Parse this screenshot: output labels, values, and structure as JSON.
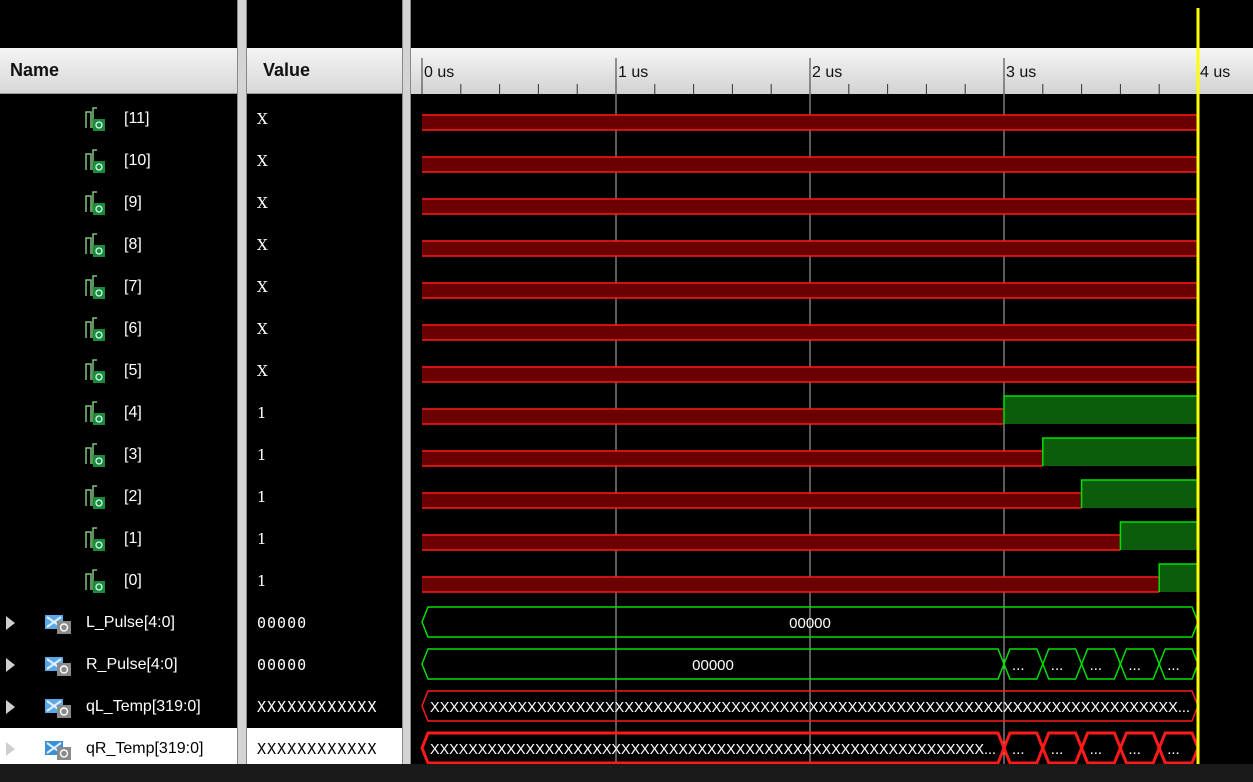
{
  "columns": {
    "name": "Name",
    "value": "Value"
  },
  "timeline": {
    "ticks": [
      {
        "t": 0,
        "label": "0 us"
      },
      {
        "t": 1,
        "label": "1 us"
      },
      {
        "t": 2,
        "label": "2 us"
      },
      {
        "t": 3,
        "label": "3 us"
      },
      {
        "t": 4,
        "label": "4 us"
      }
    ],
    "cursor_time": 4,
    "sim_end_time": 4
  },
  "signals": [
    {
      "name": "[11]",
      "kind": "bit",
      "value": "X",
      "segments": [
        {
          "from": 0,
          "to": 4,
          "state": "X"
        }
      ]
    },
    {
      "name": "[10]",
      "kind": "bit",
      "value": "X",
      "segments": [
        {
          "from": 0,
          "to": 4,
          "state": "X"
        }
      ]
    },
    {
      "name": "[9]",
      "kind": "bit",
      "value": "X",
      "segments": [
        {
          "from": 0,
          "to": 4,
          "state": "X"
        }
      ]
    },
    {
      "name": "[8]",
      "kind": "bit",
      "value": "X",
      "segments": [
        {
          "from": 0,
          "to": 4,
          "state": "X"
        }
      ]
    },
    {
      "name": "[7]",
      "kind": "bit",
      "value": "X",
      "segments": [
        {
          "from": 0,
          "to": 4,
          "state": "X"
        }
      ]
    },
    {
      "name": "[6]",
      "kind": "bit",
      "value": "X",
      "segments": [
        {
          "from": 0,
          "to": 4,
          "state": "X"
        }
      ]
    },
    {
      "name": "[5]",
      "kind": "bit",
      "value": "X",
      "segments": [
        {
          "from": 0,
          "to": 4,
          "state": "X"
        }
      ]
    },
    {
      "name": "[4]",
      "kind": "bit",
      "value": "1",
      "segments": [
        {
          "from": 0,
          "to": 3.0,
          "state": "X"
        },
        {
          "from": 3.0,
          "to": 4,
          "state": "1"
        }
      ]
    },
    {
      "name": "[3]",
      "kind": "bit",
      "value": "1",
      "segments": [
        {
          "from": 0,
          "to": 3.2,
          "state": "X"
        },
        {
          "from": 3.2,
          "to": 4,
          "state": "1"
        }
      ]
    },
    {
      "name": "[2]",
      "kind": "bit",
      "value": "1",
      "segments": [
        {
          "from": 0,
          "to": 3.4,
          "state": "X"
        },
        {
          "from": 3.4,
          "to": 4,
          "state": "1"
        }
      ]
    },
    {
      "name": "[1]",
      "kind": "bit",
      "value": "1",
      "segments": [
        {
          "from": 0,
          "to": 3.6,
          "state": "X"
        },
        {
          "from": 3.6,
          "to": 4,
          "state": "1"
        }
      ]
    },
    {
      "name": "[0]",
      "kind": "bit",
      "value": "1",
      "segments": [
        {
          "from": 0,
          "to": 3.8,
          "state": "X"
        },
        {
          "from": 3.8,
          "to": 4,
          "state": "1"
        }
      ]
    },
    {
      "name": "L_Pulse[4:0]",
      "kind": "bus",
      "value": "00000",
      "segments": [
        {
          "from": 0,
          "to": 4,
          "state": "valid",
          "label": "00000"
        }
      ]
    },
    {
      "name": "R_Pulse[4:0]",
      "kind": "bus",
      "value": "00000",
      "segments": [
        {
          "from": 0,
          "to": 3.0,
          "state": "valid",
          "label": "00000"
        },
        {
          "from": 3.0,
          "to": 3.2,
          "state": "valid",
          "label": "..."
        },
        {
          "from": 3.2,
          "to": 3.4,
          "state": "valid",
          "label": "..."
        },
        {
          "from": 3.4,
          "to": 3.6,
          "state": "valid",
          "label": "..."
        },
        {
          "from": 3.6,
          "to": 3.8,
          "state": "valid",
          "label": "..."
        },
        {
          "from": 3.8,
          "to": 4.0,
          "state": "valid",
          "label": "..."
        }
      ]
    },
    {
      "name": "qL_Temp[319:0]",
      "kind": "bus",
      "value": "XXXXXXXXXXXX",
      "segments": [
        {
          "from": 0,
          "to": 4,
          "state": "X",
          "label": "XXXXXXXXXXXXXXXXXXXXXXXXXXXXXXXXXXXXXXXXXXXXXXXXXXXXXXXXXXXXXXXXXXXXXXXXXXXXX..."
        }
      ]
    },
    {
      "name": "qR_Temp[319:0]",
      "kind": "bus",
      "value": "XXXXXXXXXXXX",
      "selected": true,
      "segments": [
        {
          "from": 0,
          "to": 3.0,
          "state": "X",
          "label": "XXXXXXXXXXXXXXXXXXXXXXXXXXXXXXXXXXXXXXXXXXXXXXXXXXXXXXXXXX..."
        },
        {
          "from": 3.0,
          "to": 3.2,
          "state": "X",
          "label": "..."
        },
        {
          "from": 3.2,
          "to": 3.4,
          "state": "X",
          "label": "..."
        },
        {
          "from": 3.4,
          "to": 3.6,
          "state": "X",
          "label": "..."
        },
        {
          "from": 3.6,
          "to": 3.8,
          "state": "X",
          "label": "..."
        },
        {
          "from": 3.8,
          "to": 4.0,
          "state": "X",
          "label": "..."
        }
      ]
    }
  ],
  "colors": {
    "background": "#000000",
    "x_state": "#ff1a1a",
    "x_fill": "#6a0000",
    "one_fill": "#0b5d0b",
    "one_line": "#00e000",
    "bus_valid": "#00e000",
    "cursor": "#ffff00",
    "grid": "#b8b8b8"
  }
}
